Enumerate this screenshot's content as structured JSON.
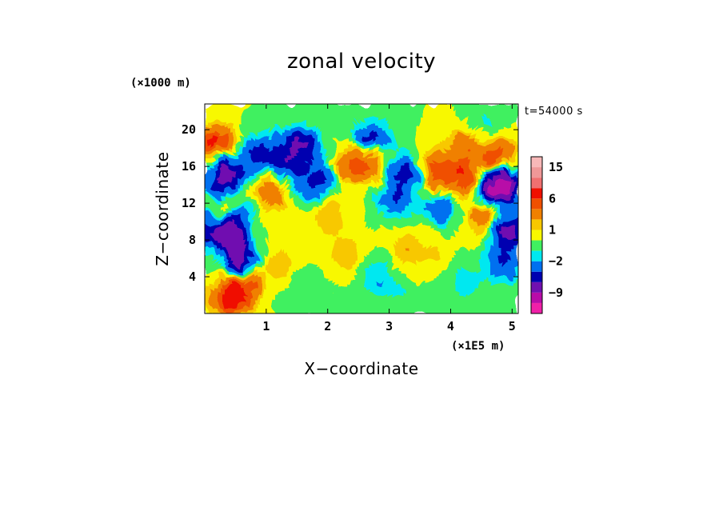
{
  "chart_data": {
    "type": "heatmap",
    "title": "zonal velocity",
    "xlabel": "X−coordinate",
    "ylabel": "Z−coordinate",
    "x_unit": "(×1E5 m)",
    "y_unit": "(×1000 m)",
    "time_label": "t=54000 s",
    "xlim": [
      0,
      5.1
    ],
    "ylim": [
      0,
      22.8
    ],
    "x_ticks": [
      "1",
      "2",
      "3",
      "4",
      "5"
    ],
    "y_ticks": [
      "4",
      "8",
      "12",
      "16",
      "20"
    ],
    "x_tick_values": [
      1,
      2,
      3,
      4,
      5
    ],
    "y_tick_values": [
      4,
      8,
      12,
      16,
      20
    ],
    "colorbar": {
      "levels": [
        {
          "lo": -15,
          "hi": -12,
          "color": "#f020a8"
        },
        {
          "lo": -12,
          "hi": -9,
          "color": "#b80ca8"
        },
        {
          "lo": -9,
          "hi": -6,
          "color": "#7010b0"
        },
        {
          "lo": -6,
          "hi": -4,
          "color": "#0000b0"
        },
        {
          "lo": -4,
          "hi": -2,
          "color": "#0070f0"
        },
        {
          "lo": -2,
          "hi": -1,
          "color": "#00e8f0"
        },
        {
          "lo": -1,
          "hi": 0,
          "color": "#40f060"
        },
        {
          "lo": 0,
          "hi": 1,
          "color": "#f8f800"
        },
        {
          "lo": 1,
          "hi": 2,
          "color": "#f8c800"
        },
        {
          "lo": 2,
          "hi": 4,
          "color": "#f08000"
        },
        {
          "lo": 4,
          "hi": 6,
          "color": "#f05000"
        },
        {
          "lo": 6,
          "hi": 9,
          "color": "#f01000"
        },
        {
          "lo": 9,
          "hi": 12,
          "color": "#f07070"
        },
        {
          "lo": 12,
          "hi": 15,
          "color": "#f09898"
        },
        {
          "lo": 15,
          "hi": 18,
          "color": "#f8b8b8"
        }
      ],
      "labels": [
        {
          "text": "15",
          "value": 15
        },
        {
          "text": "6",
          "value": 6
        },
        {
          "text": "1",
          "value": 1
        },
        {
          "text": "−2",
          "value": -2
        },
        {
          "text": "−9",
          "value": -9
        }
      ]
    },
    "field_features": [
      {
        "x": 0.35,
        "z": 15.5,
        "u": -6
      },
      {
        "x": 0.25,
        "z": 13.5,
        "u": -5
      },
      {
        "x": 0.5,
        "z": 10.5,
        "u": -5
      },
      {
        "x": 0.55,
        "z": 6.0,
        "u": -7
      },
      {
        "x": 0.1,
        "z": 9.0,
        "u": -4
      },
      {
        "x": 0.4,
        "z": 8.0,
        "u": -5
      },
      {
        "x": 0.9,
        "z": 17.5,
        "u": -5
      },
      {
        "x": 1.3,
        "z": 16.0,
        "u": -5
      },
      {
        "x": 1.55,
        "z": 18.5,
        "u": -6
      },
      {
        "x": 2.0,
        "z": 15.5,
        "u": -5
      },
      {
        "x": 2.7,
        "z": 19.0,
        "u": -5
      },
      {
        "x": 3.3,
        "z": 15.5,
        "u": -5
      },
      {
        "x": 3.1,
        "z": 12.5,
        "u": -4
      },
      {
        "x": 4.9,
        "z": 14.0,
        "u": -7
      },
      {
        "x": 4.7,
        "z": 13.5,
        "u": -6
      },
      {
        "x": 4.95,
        "z": 9.0,
        "u": -7
      },
      {
        "x": 4.85,
        "z": 5.5,
        "u": -4
      },
      {
        "x": 1.7,
        "z": 14.0,
        "u": -3
      },
      {
        "x": 3.85,
        "z": 11.5,
        "u": -4
      },
      {
        "x": 4.5,
        "z": 20.0,
        "u": -2
      },
      {
        "x": 2.8,
        "z": 4.0,
        "u": -2
      },
      {
        "x": 4.2,
        "z": 3.5,
        "u": -2
      },
      {
        "x": 0.2,
        "z": 18.5,
        "u": 7
      },
      {
        "x": 0.35,
        "z": 12.0,
        "u": 5
      },
      {
        "x": 1.1,
        "z": 13.0,
        "u": 4
      },
      {
        "x": 0.6,
        "z": 3.0,
        "u": 5
      },
      {
        "x": 0.4,
        "z": 1.5,
        "u": 6
      },
      {
        "x": 2.2,
        "z": 16.0,
        "u": 4
      },
      {
        "x": 2.6,
        "z": 16.5,
        "u": 5
      },
      {
        "x": 3.7,
        "z": 15.5,
        "u": 5
      },
      {
        "x": 4.15,
        "z": 15.0,
        "u": 6
      },
      {
        "x": 4.75,
        "z": 17.0,
        "u": 5
      },
      {
        "x": 4.3,
        "z": 18.5,
        "u": 4
      },
      {
        "x": 4.55,
        "z": 10.5,
        "u": 4
      },
      {
        "x": 2.3,
        "z": 6.5,
        "u": 2
      },
      {
        "x": 3.3,
        "z": 7.0,
        "u": 2
      },
      {
        "x": 2.0,
        "z": 10.5,
        "u": 2
      },
      {
        "x": 1.2,
        "z": 5.5,
        "u": 2
      },
      {
        "x": 3.8,
        "z": 6.0,
        "u": 1
      },
      {
        "x": 2.2,
        "z": 21.5,
        "u": -0.5
      },
      {
        "x": 2.8,
        "z": 21.5,
        "u": -0.5
      },
      {
        "x": 3.2,
        "z": 2.0,
        "u": -1
      },
      {
        "x": 1.6,
        "z": 2.5,
        "u": -1
      }
    ]
  }
}
